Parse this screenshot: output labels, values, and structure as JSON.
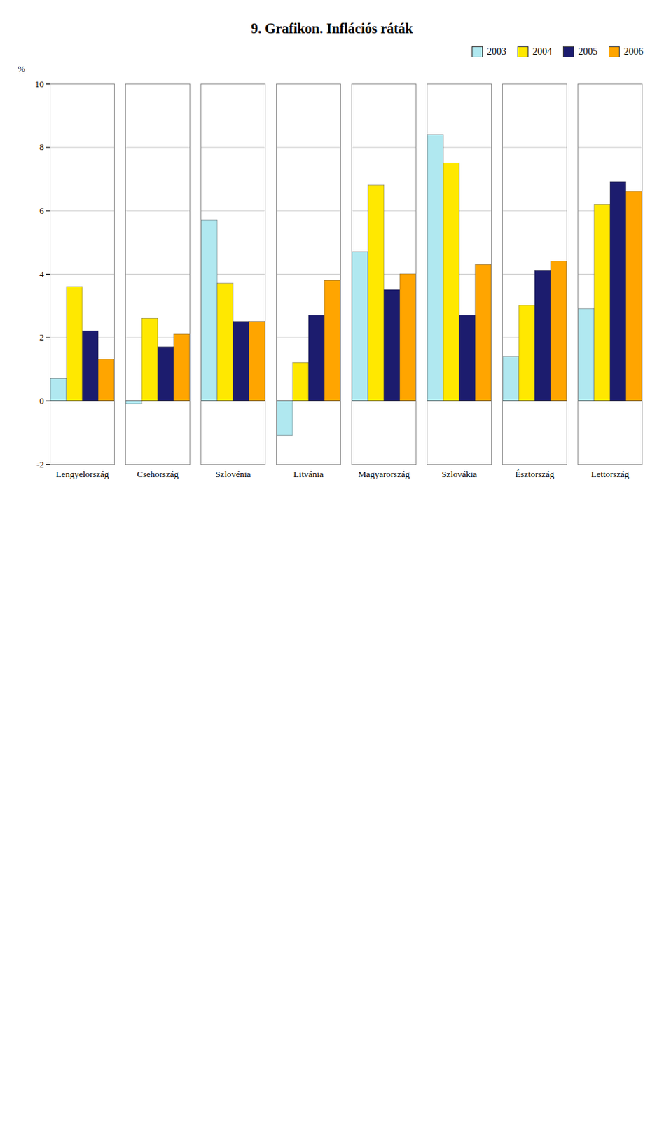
{
  "chart_data": {
    "type": "bar",
    "title": "9. Grafikon. Inflációs ráták",
    "y_label": "%",
    "categories": [
      "Lengyelország",
      "Csehország",
      "Szlovénia",
      "Litvánia",
      "Magyarország",
      "Szlovákia",
      "Észtország",
      "Lettország"
    ],
    "series": [
      {
        "name": "2003",
        "color": "#B0E8F0",
        "values": [
          0.7,
          -0.1,
          5.7,
          -1.1,
          4.7,
          8.4,
          1.4,
          2.9
        ]
      },
      {
        "name": "2004",
        "color": "#FFE800",
        "values": [
          3.6,
          2.6,
          3.7,
          1.2,
          6.8,
          7.5,
          3.0,
          6.2
        ]
      },
      {
        "name": "2005",
        "color": "#1C1C6E",
        "values": [
          2.2,
          1.7,
          2.5,
          2.7,
          3.5,
          2.7,
          4.1,
          6.9
        ]
      },
      {
        "name": "2006",
        "color": "#FFA500",
        "values": [
          1.3,
          2.1,
          2.5,
          3.8,
          4.0,
          4.3,
          4.4,
          6.6
        ]
      }
    ],
    "ylim": [
      -2,
      10
    ],
    "yticks": [
      -2,
      0,
      2,
      4,
      6,
      8,
      10
    ],
    "grid": true,
    "legend": "upper right"
  }
}
